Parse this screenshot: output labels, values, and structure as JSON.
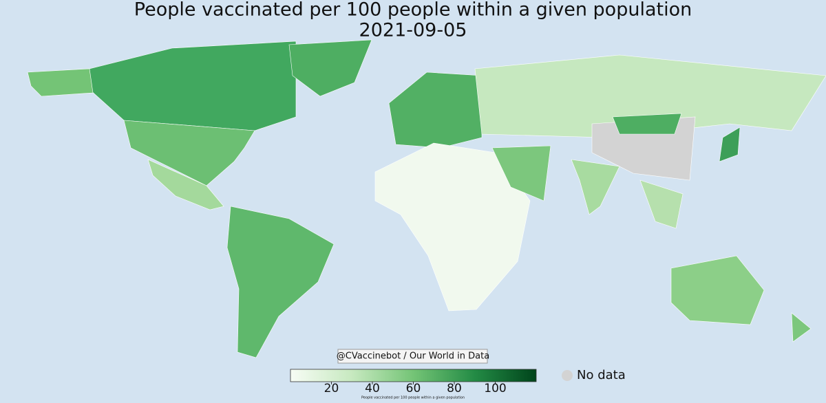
{
  "title": "People vaccinated per 100 people within a given population",
  "subtitle": "2021-09-05",
  "credit": "@CVaccinebot / Our World in Data",
  "colorbar": {
    "label": "People vaccinated per 100 people within a given population",
    "lim": [
      0,
      120
    ],
    "ticks": [
      20,
      40,
      60,
      80,
      100
    ],
    "colors": [
      "#f7fcf5",
      "#c7e9c0",
      "#74c476",
      "#238b45",
      "#00441b"
    ]
  },
  "legend": {
    "no_data": "No data",
    "no_data_color": "#d3d3d3"
  }
}
